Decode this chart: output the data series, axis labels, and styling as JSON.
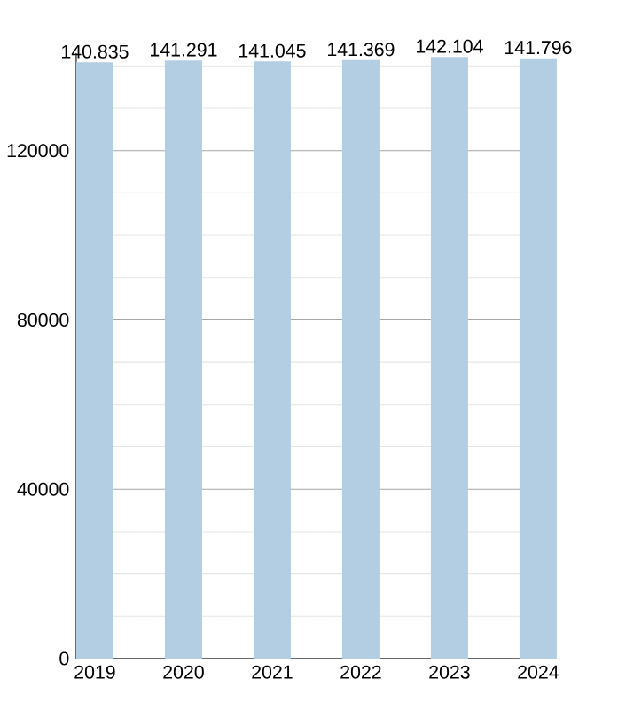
{
  "chart_data": {
    "type": "bar",
    "categories": [
      "2019",
      "2020",
      "2021",
      "2022",
      "2023",
      "2024"
    ],
    "values": [
      140835,
      141291,
      141045,
      141369,
      142104,
      141796
    ],
    "value_labels": [
      "140.835",
      "141.291",
      "141.045",
      "141.369",
      "142.104",
      "141.796"
    ],
    "color": "#b3cde3",
    "ylim": [
      0,
      143000
    ],
    "yticks": [
      0,
      {
        "value": 10000,
        "label": null
      },
      {
        "value": 20000,
        "label": null
      },
      {
        "value": 30000,
        "label": null
      },
      40000,
      {
        "value": 50000,
        "label": null
      },
      {
        "value": 60000,
        "label": null
      },
      {
        "value": 70000,
        "label": null
      },
      80000,
      {
        "value": 90000,
        "label": null
      },
      {
        "value": 100000,
        "label": null
      },
      {
        "value": 110000,
        "label": null
      },
      120000,
      {
        "value": 130000,
        "label": null
      },
      {
        "value": 140000,
        "label": null
      }
    ],
    "grid": "y"
  }
}
